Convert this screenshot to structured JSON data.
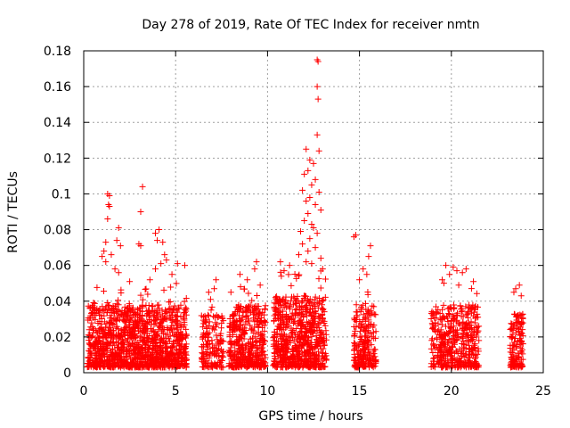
{
  "chart_data": {
    "type": "scatter",
    "title": "Day 278 of 2019, Rate Of TEC Index for receiver nmtn",
    "xlabel": "GPS time / hours",
    "ylabel": "ROTI / TECUs",
    "xlim": [
      0,
      25
    ],
    "ylim": [
      0,
      0.18
    ],
    "x_ticks": [
      0,
      5,
      10,
      15,
      20,
      25
    ],
    "x_tick_labels": [
      "0",
      "5",
      "10",
      "15",
      "20",
      "25"
    ],
    "y_ticks": [
      0,
      0.02,
      0.04,
      0.06,
      0.08,
      0.1,
      0.12,
      0.14,
      0.16,
      0.18
    ],
    "y_tick_labels": [
      "0",
      "0.02",
      "0.04",
      "0.06",
      "0.08",
      "0.1",
      "0.12",
      "0.14",
      "0.16",
      "0.18"
    ],
    "grid": true,
    "marker": "plus",
    "series": [
      {
        "name": "ROTI",
        "color": "#ff0000",
        "clusters": [
          {
            "x_range": [
              0.2,
              5.6
            ],
            "count": 1300,
            "base_max": 0.035
          },
          {
            "x_range": [
              6.4,
              7.6
            ],
            "count": 160,
            "base_max": 0.03
          },
          {
            "x_range": [
              7.9,
              9.9
            ],
            "count": 420,
            "base_max": 0.035
          },
          {
            "x_range": [
              10.3,
              13.2
            ],
            "count": 700,
            "base_max": 0.04
          },
          {
            "x_range": [
              14.7,
              15.9
            ],
            "count": 220,
            "base_max": 0.035
          },
          {
            "x_range": [
              18.9,
              21.5
            ],
            "count": 450,
            "base_max": 0.035
          },
          {
            "x_range": [
              23.2,
              23.9
            ],
            "count": 140,
            "base_max": 0.03
          }
        ],
        "points": [
          [
            1.3,
            0.1
          ],
          [
            1.4,
            0.099
          ],
          [
            1.35,
            0.094
          ],
          [
            1.4,
            0.093
          ],
          [
            1.3,
            0.086
          ],
          [
            1.2,
            0.073
          ],
          [
            1.1,
            0.068
          ],
          [
            1.0,
            0.065
          ],
          [
            1.2,
            0.062
          ],
          [
            1.5,
            0.066
          ],
          [
            1.9,
            0.081
          ],
          [
            1.8,
            0.074
          ],
          [
            2.0,
            0.071
          ],
          [
            1.7,
            0.058
          ],
          [
            1.9,
            0.056
          ],
          [
            3.2,
            0.104
          ],
          [
            3.1,
            0.09
          ],
          [
            3.0,
            0.072
          ],
          [
            3.1,
            0.071
          ],
          [
            3.9,
            0.078
          ],
          [
            4.1,
            0.08
          ],
          [
            4.0,
            0.074
          ],
          [
            4.3,
            0.073
          ],
          [
            4.4,
            0.066
          ],
          [
            4.2,
            0.061
          ],
          [
            3.9,
            0.058
          ],
          [
            4.5,
            0.063
          ],
          [
            5.1,
            0.061
          ],
          [
            5.5,
            0.06
          ],
          [
            2.5,
            0.051
          ],
          [
            4.8,
            0.055
          ],
          [
            3.6,
            0.052
          ],
          [
            6.8,
            0.045
          ],
          [
            7.2,
            0.052
          ],
          [
            6.9,
            0.041
          ],
          [
            7.1,
            0.047
          ],
          [
            8.5,
            0.055
          ],
          [
            9.4,
            0.062
          ],
          [
            9.3,
            0.058
          ],
          [
            8.9,
            0.052
          ],
          [
            9.6,
            0.049
          ],
          [
            10.7,
            0.062
          ],
          [
            11.2,
            0.06
          ],
          [
            10.9,
            0.057
          ],
          [
            12.7,
            0.175
          ],
          [
            12.75,
            0.174
          ],
          [
            12.7,
            0.16
          ],
          [
            12.75,
            0.153
          ],
          [
            12.7,
            0.133
          ],
          [
            12.1,
            0.125
          ],
          [
            12.3,
            0.119
          ],
          [
            12.8,
            0.124
          ],
          [
            12.5,
            0.117
          ],
          [
            12.2,
            0.113
          ],
          [
            12.0,
            0.111
          ],
          [
            12.6,
            0.108
          ],
          [
            11.9,
            0.102
          ],
          [
            12.4,
            0.105
          ],
          [
            12.8,
            0.101
          ],
          [
            12.3,
            0.098
          ],
          [
            12.1,
            0.096
          ],
          [
            12.6,
            0.094
          ],
          [
            12.9,
            0.091
          ],
          [
            12.2,
            0.089
          ],
          [
            12.0,
            0.085
          ],
          [
            12.4,
            0.083
          ],
          [
            12.5,
            0.081
          ],
          [
            11.8,
            0.079
          ],
          [
            12.7,
            0.078
          ],
          [
            12.3,
            0.075
          ],
          [
            11.9,
            0.072
          ],
          [
            12.6,
            0.07
          ],
          [
            12.2,
            0.068
          ],
          [
            11.7,
            0.066
          ],
          [
            12.9,
            0.064
          ],
          [
            12.1,
            0.062
          ],
          [
            12.4,
            0.061
          ],
          [
            13.0,
            0.058
          ],
          [
            14.8,
            0.077
          ],
          [
            14.7,
            0.076
          ],
          [
            15.6,
            0.071
          ],
          [
            15.5,
            0.065
          ],
          [
            15.2,
            0.058
          ],
          [
            15.4,
            0.055
          ],
          [
            15.0,
            0.052
          ],
          [
            19.7,
            0.06
          ],
          [
            20.1,
            0.059
          ],
          [
            20.3,
            0.057
          ],
          [
            19.9,
            0.055
          ],
          [
            20.6,
            0.056
          ],
          [
            20.8,
            0.058
          ],
          [
            21.2,
            0.051
          ],
          [
            19.5,
            0.052
          ],
          [
            20.4,
            0.049
          ],
          [
            23.5,
            0.047
          ],
          [
            23.7,
            0.049
          ],
          [
            23.4,
            0.045
          ],
          [
            23.8,
            0.043
          ]
        ]
      }
    ]
  }
}
